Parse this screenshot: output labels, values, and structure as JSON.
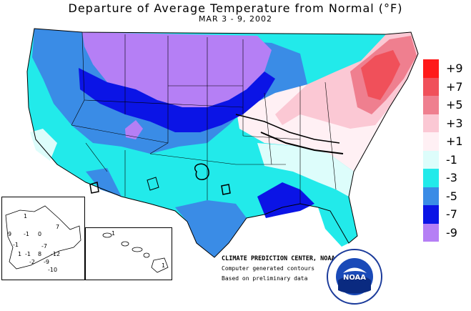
{
  "title": "Departure of Average Temperature from Normal (°F)",
  "date_range": "MAR 3 - 9, 2002",
  "legend": {
    "items": [
      {
        "label": "+9",
        "color": "#ff1a1a"
      },
      {
        "label": "+7",
        "color": "#f0505a"
      },
      {
        "label": "+5",
        "color": "#ef7f8f"
      },
      {
        "label": "+3",
        "color": "#fbc8d4"
      },
      {
        "label": "+1",
        "color": "#fff0f4"
      },
      {
        "label": "-1",
        "color": "#ddfdfb"
      },
      {
        "label": "-3",
        "color": "#22eaea"
      },
      {
        "label": "-5",
        "color": "#3a8ce6"
      },
      {
        "label": "-7",
        "color": "#0b14e6"
      },
      {
        "label": "-9",
        "color": "#b57ff5"
      }
    ]
  },
  "credits": {
    "center": "CLIMATE PREDICTION CENTER, NOAA",
    "line1": "Computer generated contours",
    "line2": "Based on preliminary data"
  },
  "alaska_values": [
    "1",
    "9",
    "-1",
    "0",
    "7",
    "-1",
    "-7",
    "1",
    "-1",
    "8",
    "-12",
    "-2",
    "-9",
    "-10"
  ],
  "hawaii_values": [
    "1",
    "1"
  ],
  "logo": {
    "text": "NOAA"
  }
}
